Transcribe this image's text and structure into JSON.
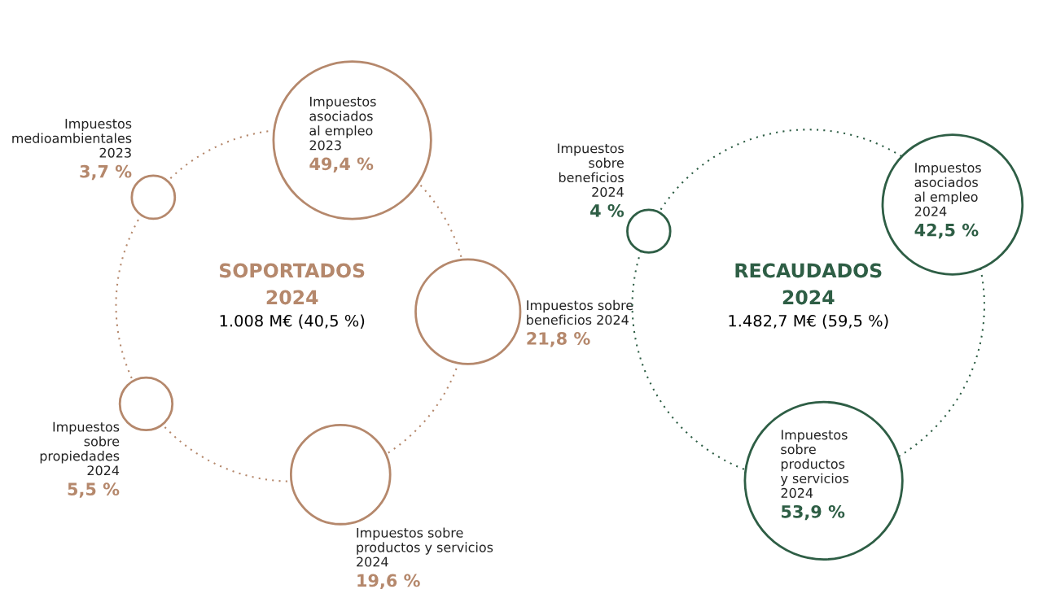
{
  "chart_data": [
    {
      "type": "other",
      "title": "SOPORTADOS",
      "subtitle": "2024",
      "annotations": [
        "1.008 M€ (40,5 %)"
      ],
      "categories": [
        "Impuestos\nasociados\nal empleo\n2023",
        "Impuestos sobre\nbeneficios 2024",
        "Impuestos sobre\nproductos y servicios\n2024",
        "Impuestos\nsobre\npropiedades\n2024",
        "Impuestos\nmedioambientales\n2023"
      ],
      "values": [
        49.4,
        21.8,
        19.6,
        5.5,
        3.7
      ],
      "value_labels": [
        "49,4 %",
        "21,8 %",
        "19,6 %",
        "5,5 %",
        "3,7 %"
      ],
      "colors": [
        "#b5886c",
        "#b5886c",
        "#b5886c",
        "#b5886c",
        "#b5886c"
      ]
    },
    {
      "type": "other",
      "title": "RECAUDADOS",
      "subtitle": "2024",
      "annotations": [
        "1.482,7 M€ (59,5 %)"
      ],
      "categories": [
        "Impuestos\nasociados\nal empleo\n2024",
        "Impuestos\nsobre\nproductos\ny servicios\n2024",
        "Impuestos\nsobre\nbeneficios\n2024"
      ],
      "values": [
        42.5,
        53.9,
        4
      ],
      "value_labels": [
        "42,5 %",
        "53,9 %",
        "4 %"
      ],
      "colors": [
        "#2e5e45",
        "#2e5e45",
        "#2e5e45"
      ]
    }
  ]
}
